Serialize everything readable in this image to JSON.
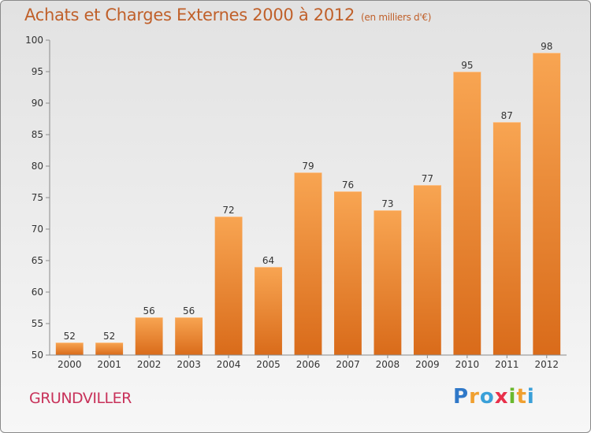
{
  "header": {
    "title": "Achats et Charges Externes 2000 à 2012",
    "unit": "(en milliers d'€)"
  },
  "footer": {
    "commune": "GRUNDVILLER",
    "logo_letters": [
      "P",
      "r",
      "o",
      "x",
      "i",
      "t",
      "i"
    ],
    "logo_colors": [
      "#2f78c8",
      "#f0a030",
      "#3aa0d8",
      "#e8304a",
      "#6ab82e",
      "#f0a030",
      "#3aa0d8"
    ]
  },
  "colors": {
    "bar_light": "#f8a552",
    "bar_dark": "#d96b1a",
    "title": "#c0602a",
    "axis": "#8a8a8a"
  },
  "chart_data": {
    "type": "bar",
    "categories": [
      "2000",
      "2001",
      "2002",
      "2003",
      "2004",
      "2005",
      "2006",
      "2007",
      "2008",
      "2009",
      "2010",
      "2011",
      "2012"
    ],
    "values": [
      52,
      52,
      56,
      56,
      72,
      64,
      79,
      76,
      73,
      77,
      95,
      87,
      98
    ],
    "ylim": [
      50,
      100
    ],
    "yticks": [
      50,
      55,
      60,
      65,
      70,
      75,
      80,
      85,
      90,
      95,
      100
    ],
    "grid": false,
    "data_labels": true
  }
}
